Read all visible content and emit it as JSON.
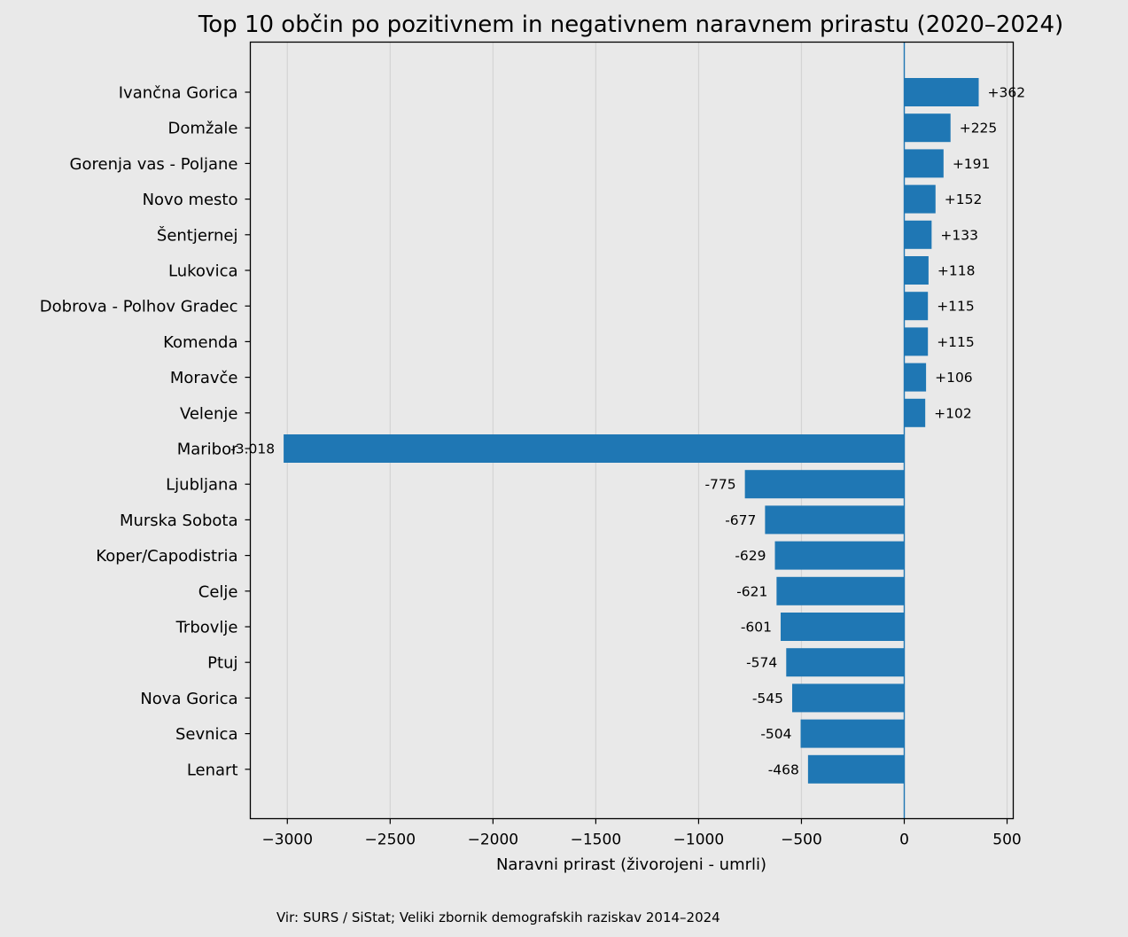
{
  "chart_data": {
    "type": "bar",
    "orientation": "horizontal",
    "title": "Top 10 občin po pozitivnem in negativnem naravnem prirastu (2020–2024)",
    "xlabel": "Naravni prirast (živorojeni - umrli)",
    "ylabel": "",
    "xlim": [
      -3180,
      530
    ],
    "xticks": [
      -3000,
      -2500,
      -2000,
      -1500,
      -1000,
      -500,
      0,
      500
    ],
    "xtick_labels": [
      "−3000",
      "−2500",
      "−2000",
      "−1500",
      "−1000",
      "−500",
      "0",
      "500"
    ],
    "grid": "vertical",
    "bar_color": "#1f77b4",
    "categories": [
      "Ivančna Gorica",
      "Domžale",
      "Gorenja vas - Poljane",
      "Novo mesto",
      "Šentjernej",
      "Lukovica",
      "Dobrova - Polhov Gradec",
      "Komenda",
      "Moravče",
      "Velenje",
      "Maribor",
      "Ljubljana",
      "Murska Sobota",
      "Koper/Capodistria",
      "Celje",
      "Trbovlje",
      "Ptuj",
      "Nova Gorica",
      "Sevnica",
      "Lenart"
    ],
    "values": [
      362,
      225,
      191,
      152,
      133,
      118,
      115,
      115,
      106,
      102,
      -3018,
      -775,
      -677,
      -629,
      -621,
      -601,
      -574,
      -545,
      -504,
      -468
    ],
    "data_labels": [
      "+362",
      "+225",
      "+191",
      "+152",
      "+133",
      "+118",
      "+115",
      "+115",
      "+106",
      "+102",
      "-3.018",
      "-775",
      "-677",
      "-629",
      "-621",
      "-601",
      "-574",
      "-545",
      "-504",
      "-468"
    ]
  },
  "footer": {
    "source": "Vir: SURS / SiStat; Veliki zbornik demografskih raziskav 2014–2024"
  }
}
